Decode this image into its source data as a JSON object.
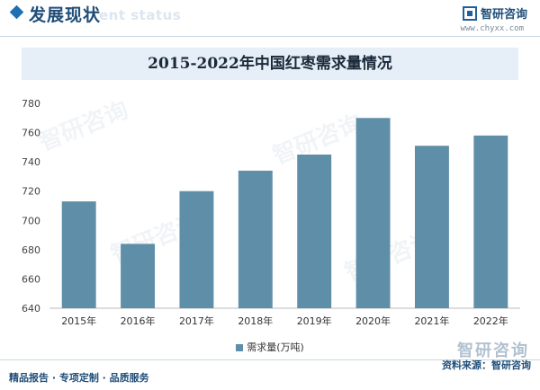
{
  "header": {
    "section_title": "发展现状",
    "section_subtitle": "ent status",
    "brand_name": "智研咨询",
    "brand_url": "www.chyxx.com"
  },
  "watermark_text": "智研咨询",
  "chart_data": {
    "type": "bar",
    "title": "2015-2022年中国红枣需求量情况",
    "categories": [
      "2015年",
      "2016年",
      "2017年",
      "2018年",
      "2019年",
      "2020年",
      "2021年",
      "2022年"
    ],
    "series": [
      {
        "name": "需求量(万吨)",
        "values": [
          713,
          684,
          720,
          734,
          745,
          770,
          751,
          758
        ],
        "color": "#5f8fa8"
      }
    ],
    "ylim": [
      640,
      780
    ],
    "yticks": [
      640,
      660,
      680,
      700,
      720,
      740,
      760,
      780
    ],
    "grid": false,
    "legend_position": "bottom"
  },
  "footer": {
    "left_text": "精品报告 · 专项定制 · 品质服务",
    "source_text": "资料来源：智研咨询",
    "brand_text": "智研咨询"
  }
}
